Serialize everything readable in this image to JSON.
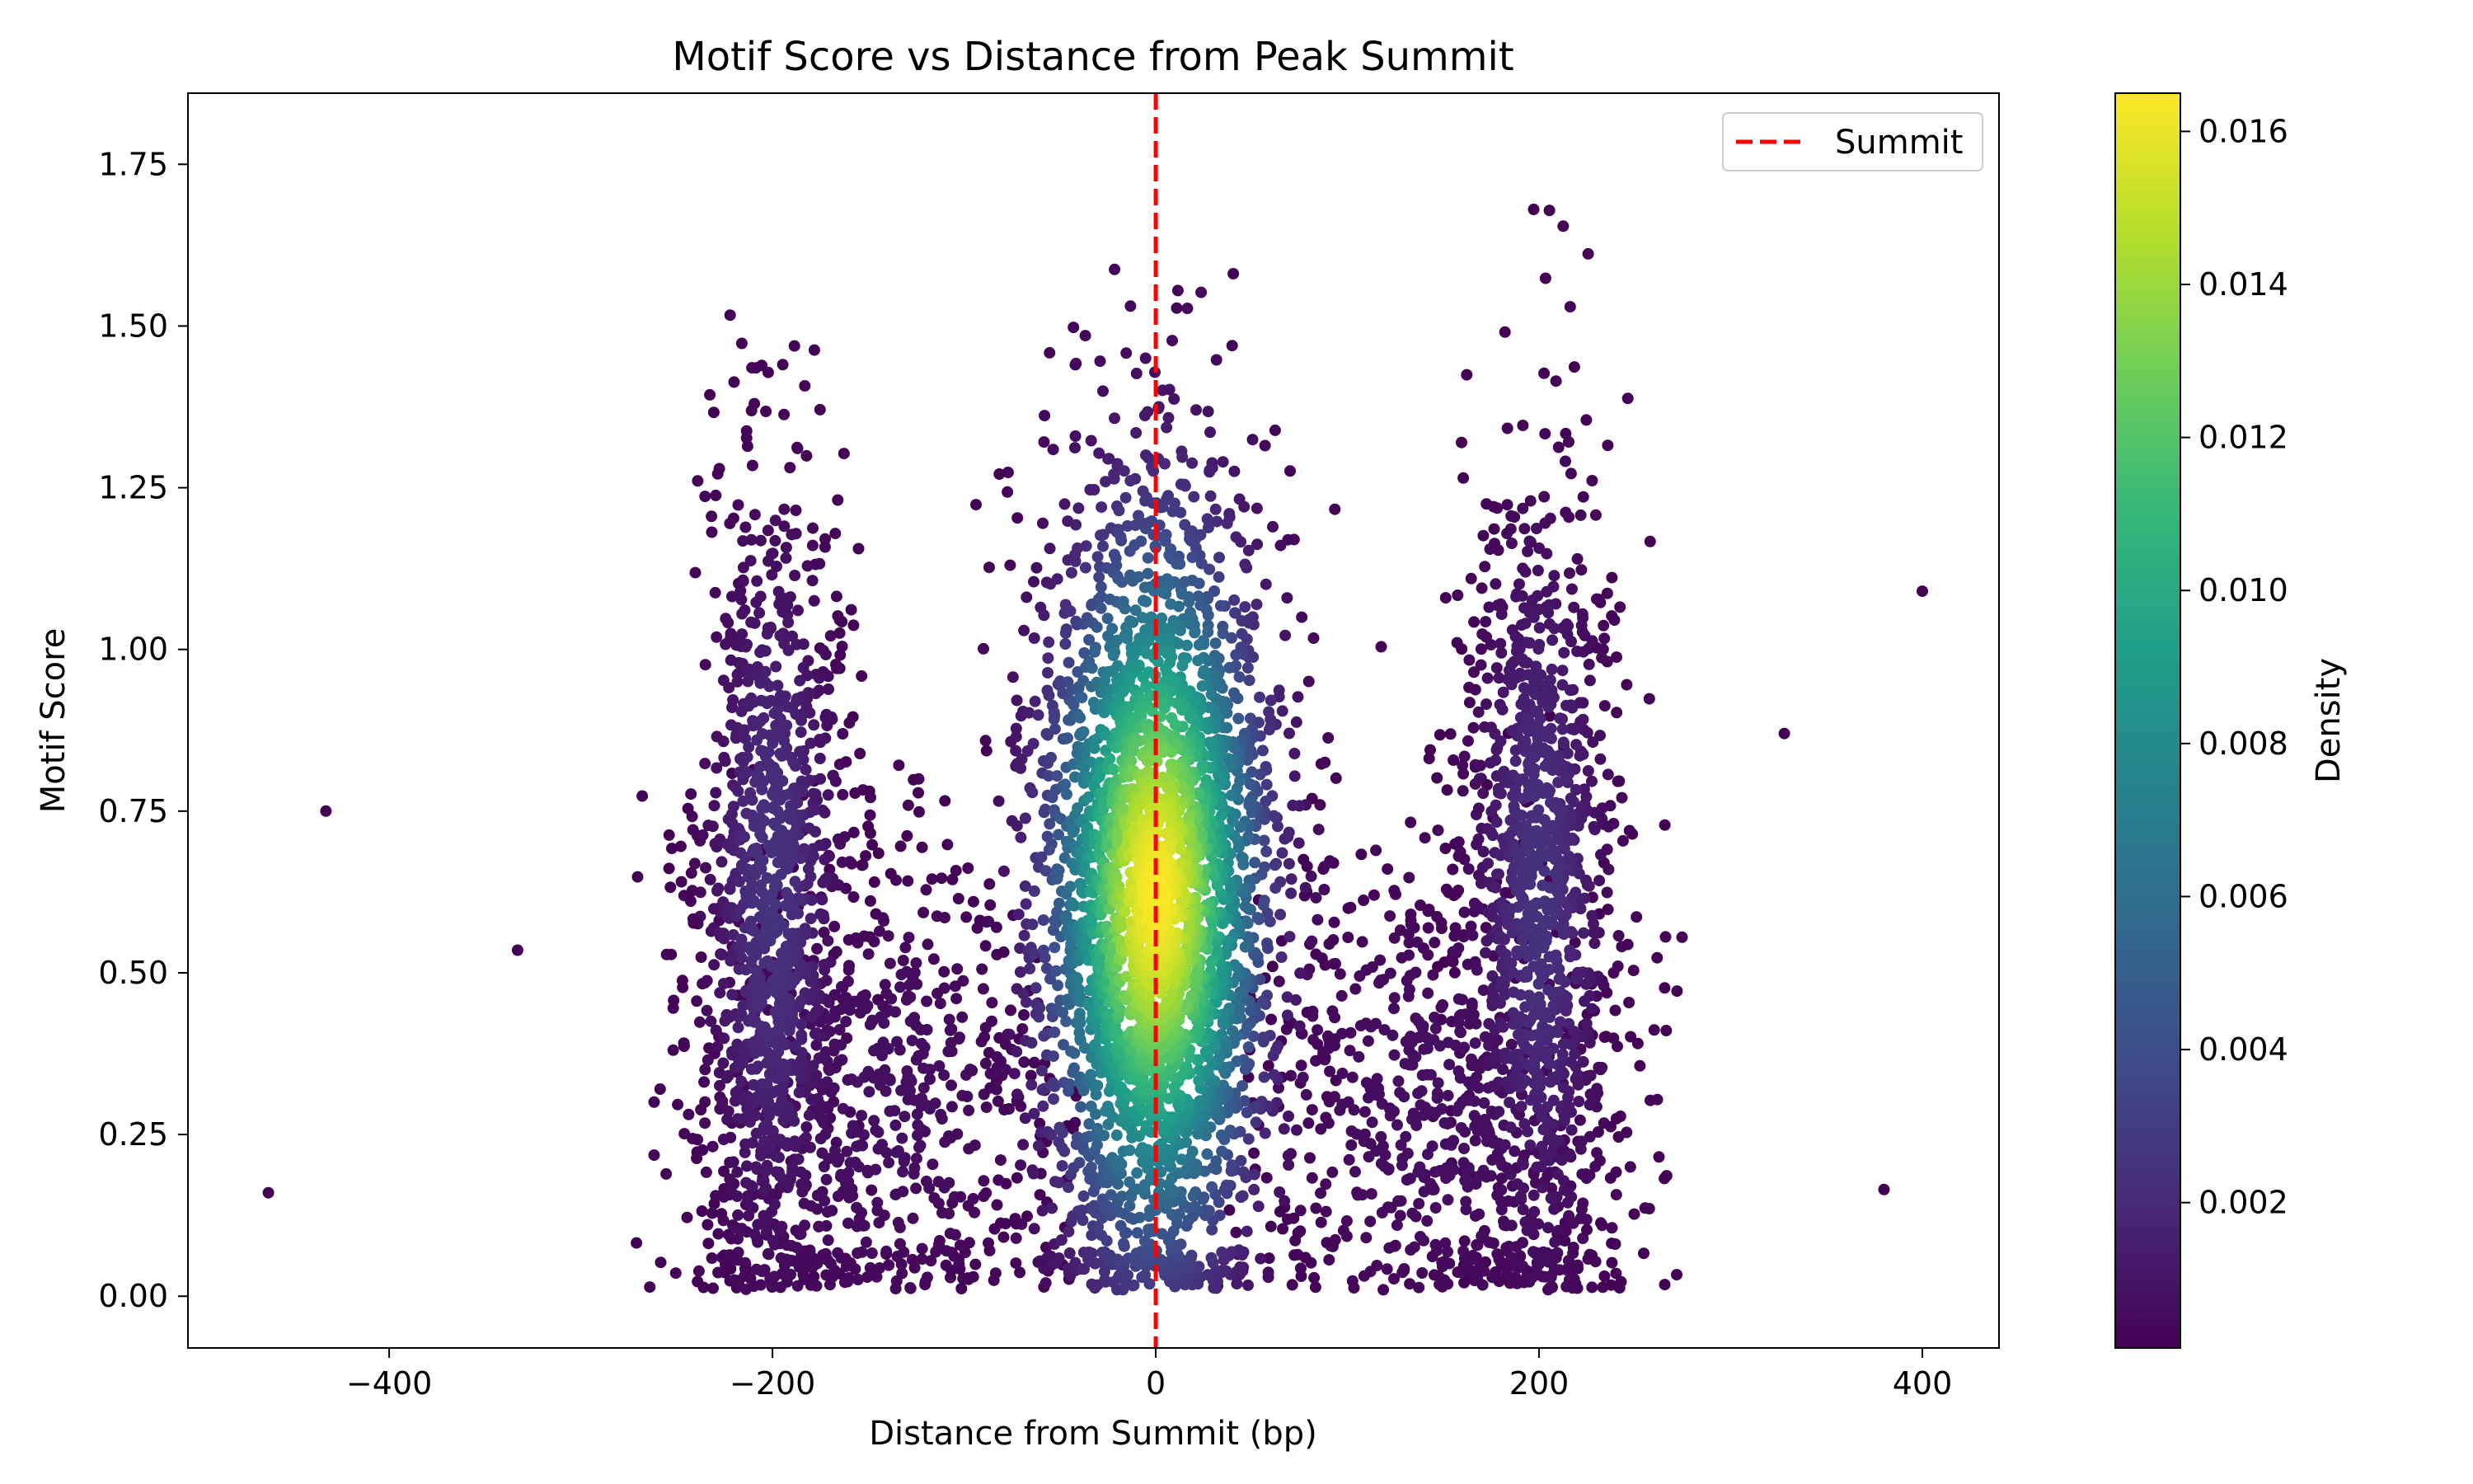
{
  "chart_data": {
    "type": "scatter",
    "title": "Motif Score vs Distance from Peak Summit",
    "xlabel": "Distance from Summit (bp)",
    "ylabel": "Motif Score",
    "xlim": [
      -505,
      440
    ],
    "ylim": [
      -0.08,
      1.86
    ],
    "xticks": [
      -400,
      -200,
      0,
      200,
      400
    ],
    "xtick_labels": [
      "−400",
      "−200",
      "0",
      "200",
      "400"
    ],
    "yticks": [
      0.0,
      0.25,
      0.5,
      0.75,
      1.0,
      1.25,
      1.5,
      1.75
    ],
    "ytick_labels": [
      "0.00",
      "0.25",
      "0.50",
      "0.75",
      "1.00",
      "1.25",
      "1.50",
      "1.75"
    ],
    "grid": false,
    "colormap": "viridis",
    "colorbar": {
      "label": "Density",
      "range": [
        0.0001,
        0.0165
      ],
      "ticks": [
        0.002,
        0.004,
        0.006,
        0.008,
        0.01,
        0.012,
        0.014,
        0.016
      ],
      "tick_labels": [
        "0.002",
        "0.004",
        "0.006",
        "0.008",
        "0.010",
        "0.012",
        "0.014",
        "0.016"
      ]
    },
    "reference_line": {
      "x": 0,
      "color": "#e41a1c",
      "style": "dashed",
      "label": "Summit"
    },
    "legend": {
      "position": "top-right",
      "entries": [
        "Summit"
      ]
    },
    "clusters": [
      {
        "center_x": 0,
        "spread_x": 32,
        "center_y": 0.62,
        "spread_y": 0.32,
        "count": 3200,
        "peak_density": 0.0165,
        "x_range": [
          -110,
          110
        ]
      },
      {
        "center_x": -200,
        "spread_x": 20,
        "center_y": 0.62,
        "spread_y": 0.32,
        "count": 1100,
        "peak_density": 0.0025,
        "x_range": [
          -280,
          -125
        ]
      },
      {
        "center_x": 200,
        "spread_x": 20,
        "center_y": 0.62,
        "spread_y": 0.32,
        "count": 1100,
        "peak_density": 0.0025,
        "x_range": [
          125,
          280
        ]
      },
      {
        "center_x": -150,
        "spread_x": 55,
        "center_y": 0.3,
        "spread_y": 0.22,
        "count": 700,
        "peak_density": 0.0008,
        "x_range": [
          -275,
          -30
        ]
      },
      {
        "center_x": 150,
        "spread_x": 55,
        "center_y": 0.3,
        "spread_y": 0.22,
        "count": 700,
        "peak_density": 0.0008,
        "x_range": [
          30,
          275
        ]
      }
    ],
    "outliers": [
      {
        "x": -463,
        "y": 0.16
      },
      {
        "x": -433,
        "y": 0.75
      },
      {
        "x": -333,
        "y": 0.535
      },
      {
        "x": 328,
        "y": 0.87
      },
      {
        "x": 380,
        "y": 0.165
      },
      {
        "x": 400,
        "y": 1.09
      }
    ]
  }
}
